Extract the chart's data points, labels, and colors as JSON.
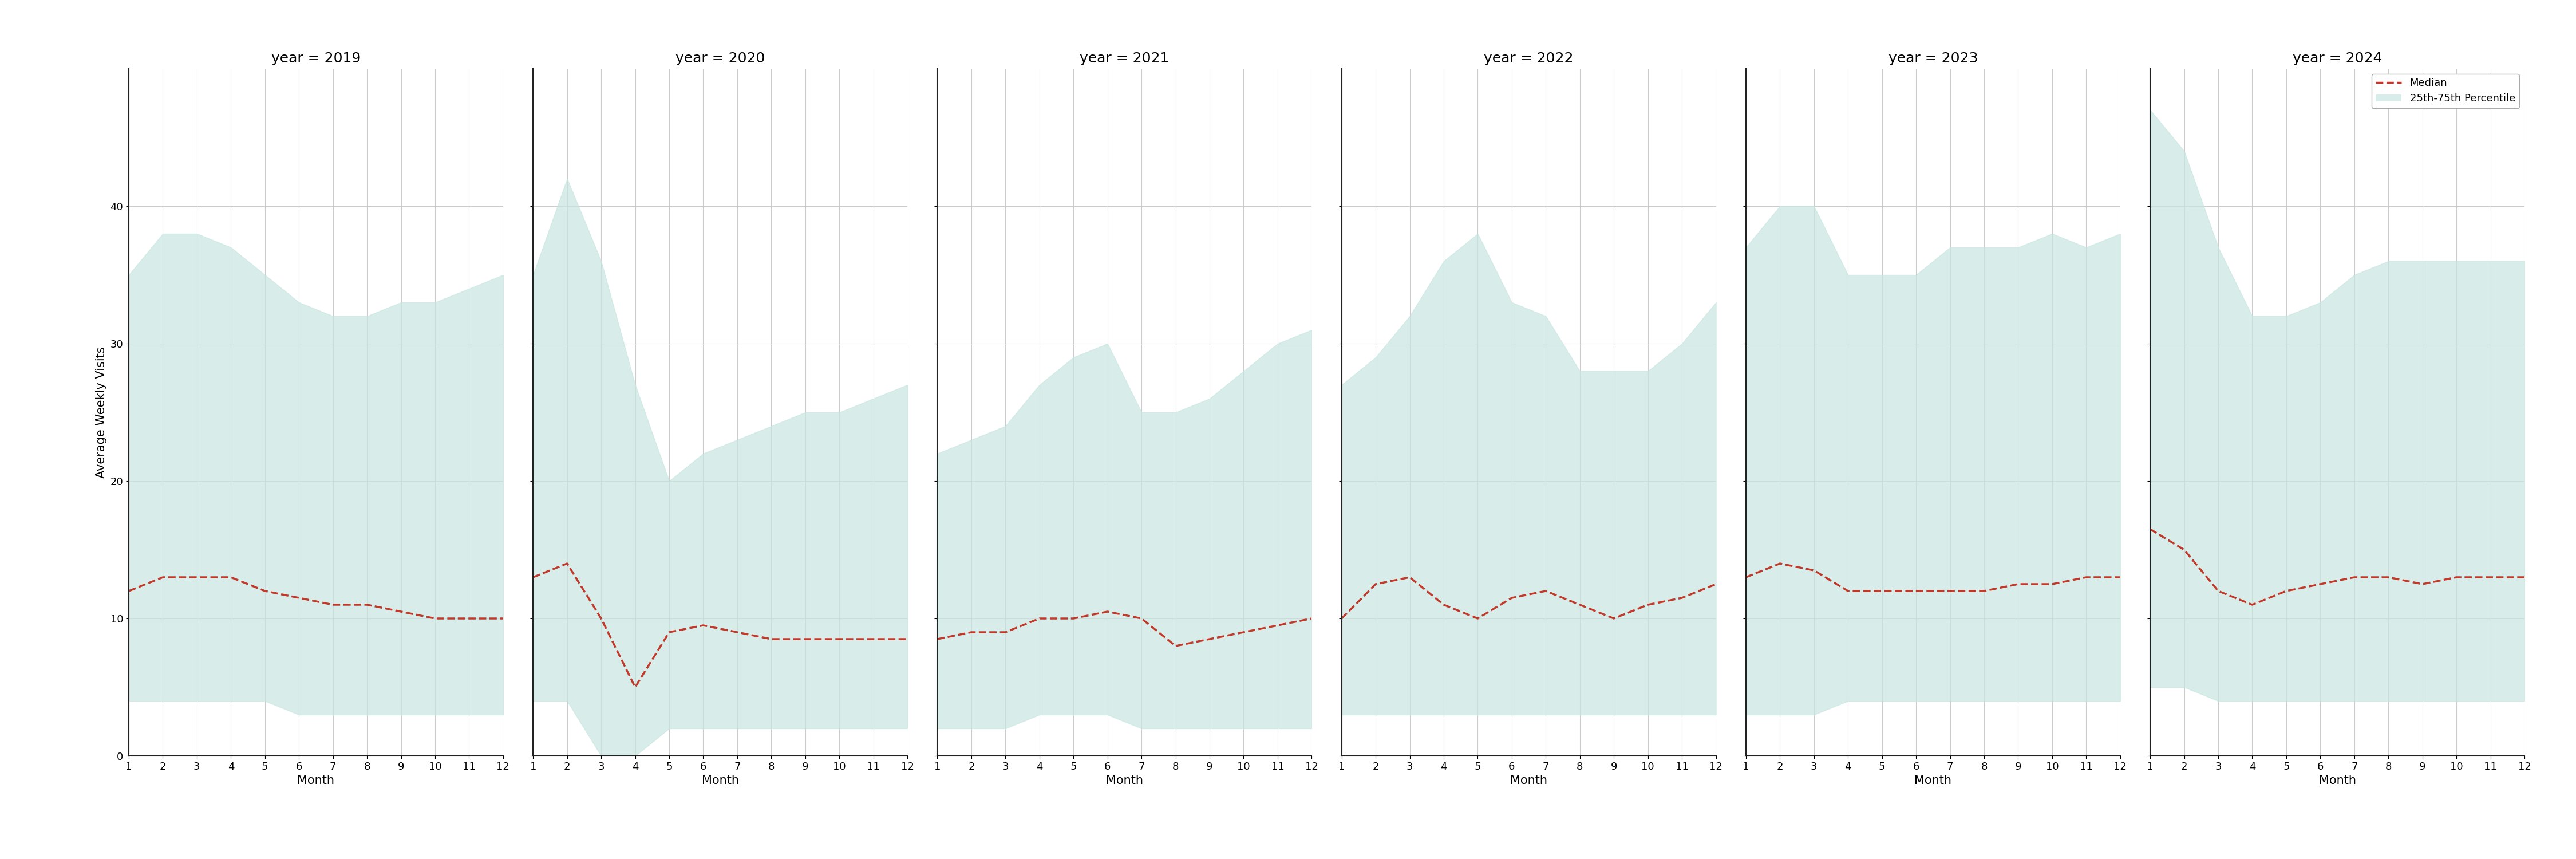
{
  "years": [
    2019,
    2020,
    2021,
    2022,
    2023,
    2024
  ],
  "months": [
    1,
    2,
    3,
    4,
    5,
    6,
    7,
    8,
    9,
    10,
    11,
    12
  ],
  "median": {
    "2019": [
      12,
      13,
      13,
      13,
      12,
      11.5,
      11,
      11,
      10.5,
      10,
      10,
      10
    ],
    "2020": [
      13,
      14,
      10,
      5,
      9,
      9.5,
      9,
      8.5,
      8.5,
      8.5,
      8.5,
      8.5
    ],
    "2021": [
      8.5,
      9,
      9,
      10,
      10,
      10.5,
      10,
      8,
      8.5,
      9,
      9.5,
      10
    ],
    "2022": [
      10,
      12.5,
      13,
      11,
      10,
      11.5,
      12,
      11,
      10,
      11,
      11.5,
      12.5
    ],
    "2023": [
      13,
      14,
      13.5,
      12,
      12,
      12,
      12,
      12,
      12.5,
      12.5,
      13,
      13
    ],
    "2024": [
      16.5,
      15,
      12,
      11,
      12,
      12.5,
      13,
      13,
      12.5,
      13,
      13,
      13
    ]
  },
  "p25": {
    "2019": [
      4,
      4,
      4,
      4,
      4,
      3,
      3,
      3,
      3,
      3,
      3,
      3
    ],
    "2020": [
      4,
      4,
      0,
      0,
      2,
      2,
      2,
      2,
      2,
      2,
      2,
      2
    ],
    "2021": [
      2,
      2,
      2,
      3,
      3,
      3,
      2,
      2,
      2,
      2,
      2,
      2
    ],
    "2022": [
      3,
      3,
      3,
      3,
      3,
      3,
      3,
      3,
      3,
      3,
      3,
      3
    ],
    "2023": [
      3,
      3,
      3,
      4,
      4,
      4,
      4,
      4,
      4,
      4,
      4,
      4
    ],
    "2024": [
      5,
      5,
      4,
      4,
      4,
      4,
      4,
      4,
      4,
      4,
      4,
      4
    ]
  },
  "p75": {
    "2019": [
      35,
      38,
      38,
      37,
      35,
      33,
      32,
      32,
      33,
      33,
      34,
      35
    ],
    "2020": [
      35,
      42,
      36,
      27,
      20,
      22,
      23,
      24,
      25,
      25,
      26,
      27
    ],
    "2021": [
      22,
      23,
      24,
      27,
      29,
      30,
      25,
      25,
      26,
      28,
      30,
      31
    ],
    "2022": [
      27,
      29,
      32,
      36,
      38,
      33,
      32,
      28,
      28,
      28,
      30,
      33
    ],
    "2023": [
      37,
      40,
      40,
      35,
      35,
      35,
      37,
      37,
      37,
      38,
      37,
      38
    ],
    "2024": [
      47,
      44,
      37,
      32,
      32,
      33,
      35,
      36,
      36,
      36,
      36,
      36
    ]
  },
  "fill_color": "#c8e6e1",
  "fill_alpha": 0.7,
  "line_color": "#c0392b",
  "line_style": "--",
  "line_width": 2.5,
  "ylabel": "Average Weekly Visits",
  "xlabel": "Month",
  "ylim": [
    0,
    50
  ],
  "yticks": [
    0,
    10,
    20,
    30,
    40
  ],
  "xticks": [
    1,
    2,
    3,
    4,
    5,
    6,
    7,
    8,
    9,
    10,
    11,
    12
  ],
  "legend_median": "Median",
  "legend_fill": "25th-75th Percentile",
  "fig_width": 45,
  "fig_height": 15,
  "background_color": "#ffffff",
  "spine_color": "#222222",
  "grid_color": "#cccccc",
  "title_fontsize": 18,
  "label_fontsize": 15,
  "tick_fontsize": 13
}
